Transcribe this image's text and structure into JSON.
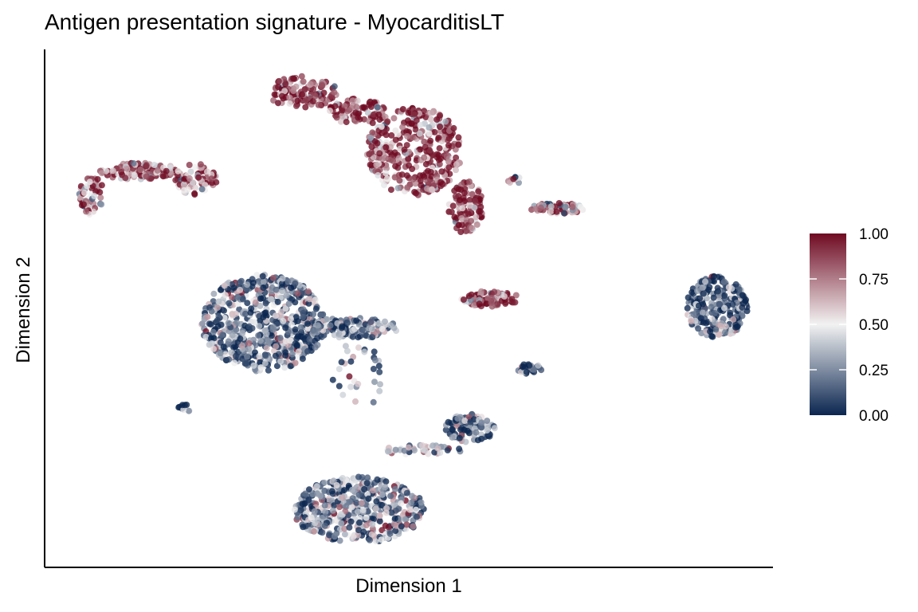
{
  "chart_data": {
    "type": "scatter",
    "title": "Antigen presentation signature - MyocarditisLT",
    "xlabel": "Dimension 1",
    "ylabel": "Dimension 2",
    "xlim": [
      0,
      100
    ],
    "ylim": [
      0,
      100
    ],
    "grid": false,
    "color_scale": {
      "low": "#0B2650",
      "mid": "#F2F2F2",
      "high": "#6F0A22",
      "range": [
        0,
        1
      ],
      "ticks": [
        "0.00",
        "0.25",
        "0.50",
        "0.75",
        "1.00"
      ]
    },
    "legend_placement": "right",
    "clusters": [
      {
        "x": 6.5,
        "y": 71.8,
        "sx": 1.6,
        "sy": 3.4,
        "n": 60,
        "mean": 0.72
      },
      {
        "x": 13.0,
        "y": 76.5,
        "sx": 4.9,
        "sy": 1.5,
        "n": 120,
        "mean": 0.8
      },
      {
        "x": 20.7,
        "y": 74.9,
        "sx": 2.7,
        "sy": 2.8,
        "n": 70,
        "mean": 0.8
      },
      {
        "x": 35.4,
        "y": 91.8,
        "sx": 4.4,
        "sy": 2.8,
        "n": 120,
        "mean": 0.88
      },
      {
        "x": 43.1,
        "y": 88.0,
        "sx": 3.8,
        "sy": 2.3,
        "n": 80,
        "mean": 0.88
      },
      {
        "x": 50.8,
        "y": 80.3,
        "sx": 6.0,
        "sy": 7.7,
        "n": 350,
        "mean": 0.88
      },
      {
        "x": 57.9,
        "y": 69.5,
        "sx": 2.2,
        "sy": 4.6,
        "n": 100,
        "mean": 0.88
      },
      {
        "x": 70.4,
        "y": 69.2,
        "sx": 3.3,
        "sy": 1.1,
        "n": 60,
        "mean": 0.7
      },
      {
        "x": 64.4,
        "y": 74.9,
        "sx": 0.9,
        "sy": 0.9,
        "n": 10,
        "mean": 0.5
      },
      {
        "x": 30.0,
        "y": 47.2,
        "sx": 7.7,
        "sy": 8.5,
        "n": 650,
        "mean": 0.2
      },
      {
        "x": 42.0,
        "y": 46.2,
        "sx": 6.0,
        "sy": 1.8,
        "n": 150,
        "mean": 0.25
      },
      {
        "x": 61.2,
        "y": 51.8,
        "sx": 3.8,
        "sy": 1.4,
        "n": 80,
        "mean": 0.88
      },
      {
        "x": 92.3,
        "y": 50.3,
        "sx": 3.8,
        "sy": 5.4,
        "n": 250,
        "mean": 0.15
      },
      {
        "x": 43.1,
        "y": 11.1,
        "sx": 8.2,
        "sy": 5.8,
        "n": 500,
        "mean": 0.3
      },
      {
        "x": 58.4,
        "y": 26.9,
        "sx": 3.1,
        "sy": 2.5,
        "n": 100,
        "mean": 0.22
      },
      {
        "x": 51.9,
        "y": 22.6,
        "sx": 4.9,
        "sy": 0.9,
        "n": 40,
        "mean": 0.3
      },
      {
        "x": 66.6,
        "y": 38.3,
        "sx": 1.5,
        "sy": 0.9,
        "n": 30,
        "mean": 0.15
      },
      {
        "x": 19.3,
        "y": 30.8,
        "sx": 0.9,
        "sy": 0.9,
        "n": 12,
        "mean": 0.1
      },
      {
        "x": 43.1,
        "y": 37.2,
        "sx": 3.3,
        "sy": 6.2,
        "n": 30,
        "mean": 0.3
      }
    ]
  }
}
